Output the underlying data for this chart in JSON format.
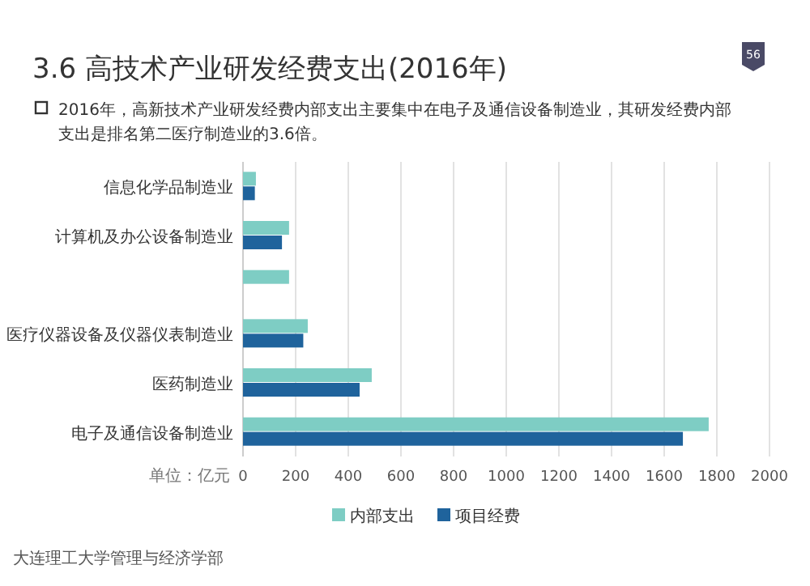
{
  "chart_data": {
    "type": "bar",
    "orientation": "horizontal",
    "title": "3.6  高技术产业研发经费支出(2016年)",
    "subtitle": "2016年，高新技术产业研发经费内部支出主要集中在电子及通信设备制造业，其研发经费内部支出是排名第二医疗制造业的3.6倍。",
    "categories": [
      "信息化学品制造业",
      "计算机及办公设备制造业",
      null,
      "医疗仪器设备及仪器仪表制造业",
      "医药制造业",
      "电子及通信设备制造业"
    ],
    "series": [
      {
        "name": "内部支出",
        "color": "#7ecdc4",
        "values": [
          49,
          175,
          175,
          246,
          489,
          1769
        ]
      },
      {
        "name": "项目经费",
        "color": "#1f639c",
        "values": [
          45,
          148,
          null,
          229,
          443,
          1671
        ]
      }
    ],
    "xlim": [
      0,
      2000
    ],
    "xticks": [
      0,
      200,
      400,
      600,
      800,
      1000,
      1200,
      1400,
      1600,
      1800,
      2000
    ],
    "grid": "x",
    "legend": "bottom",
    "annotations": [
      "单位：亿元",
      "大连理工大学管理与经济学部",
      "56"
    ]
  }
}
